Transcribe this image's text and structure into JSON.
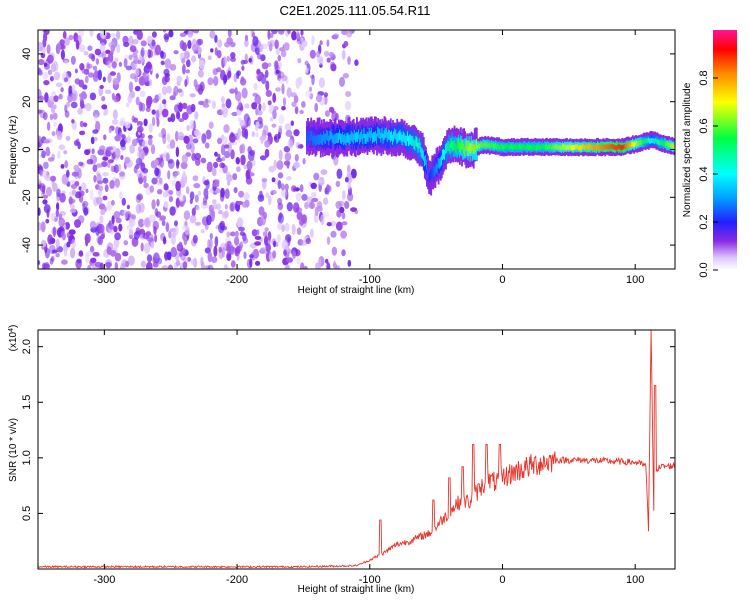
{
  "figure": {
    "title": "C2E1.2025.111.05.54.R11"
  },
  "chart_data": [
    {
      "type": "heatmap",
      "xlabel": "Height of straight line (km)",
      "ylabel": "Frequency (Hz)",
      "xlim": [
        -350,
        130
      ],
      "ylim": [
        -50,
        50
      ],
      "xticks": [
        -300,
        -200,
        -100,
        0,
        100
      ],
      "yticks": [
        -40,
        -20,
        0,
        20,
        40
      ],
      "colorbar": {
        "label": "Normalized spectral amplitude",
        "range": [
          0,
          1
        ],
        "ticks": [
          0.0,
          0.2,
          0.4,
          0.6,
          0.8
        ],
        "colors": [
          "#ffffff",
          "#8a2be2",
          "#0000ff",
          "#00ffff",
          "#00ff00",
          "#ffff00",
          "#ff8800",
          "#ff0000",
          "#ff1493"
        ]
      },
      "noise_region_x": [
        -350,
        -110
      ],
      "signal_band": [
        {
          "x": -148,
          "freq": 5,
          "amplitude": 0.25
        },
        {
          "x": -120,
          "freq": 5,
          "amplitude": 0.35
        },
        {
          "x": -95,
          "freq": 6,
          "amplitude": 0.35
        },
        {
          "x": -75,
          "freq": 5,
          "amplitude": 0.4
        },
        {
          "x": -62,
          "freq": 1,
          "amplitude": 0.45
        },
        {
          "x": -55,
          "freq": -12,
          "amplitude": 0.2
        },
        {
          "x": -40,
          "freq": 2,
          "amplitude": 0.5
        },
        {
          "x": -25,
          "freq": 0,
          "amplitude": 0.65
        },
        {
          "x": -15,
          "freq": 2,
          "amplitude": 0.6
        },
        {
          "x": 0,
          "freq": 1,
          "amplitude": 0.55
        },
        {
          "x": 30,
          "freq": 1,
          "amplitude": 0.55
        },
        {
          "x": 60,
          "freq": 1,
          "amplitude": 0.75
        },
        {
          "x": 90,
          "freq": 1,
          "amplitude": 0.9
        },
        {
          "x": 112,
          "freq": 4,
          "amplitude": 0.4
        },
        {
          "x": 130,
          "freq": 1,
          "amplitude": 0.7
        }
      ]
    },
    {
      "type": "line",
      "xlabel": "Height of straight line (km)",
      "ylabel": "SNR (10 * v/v)",
      "y_multiplier_label": "(x10",
      "y_multiplier_exponent": "4",
      "xlim": [
        -350,
        130
      ],
      "ylim": [
        0,
        2.15
      ],
      "xticks": [
        -300,
        -200,
        -100,
        0,
        100
      ],
      "yticks": [
        0.5,
        1.0,
        1.5,
        2.0
      ],
      "ytick_labels": [
        "0.5",
        "1.0",
        "1.5",
        "2.0"
      ],
      "color": "#e8342a",
      "series": [
        {
          "x": [
            -350,
            -300,
            -250,
            -200,
            -150,
            -110,
            -100,
            -90,
            -80,
            -70,
            -60,
            -55,
            -50,
            -45,
            -40,
            -35,
            -30,
            -25,
            -20,
            -15,
            -10,
            -5,
            0,
            10,
            20,
            30,
            40,
            60,
            80,
            100,
            108,
            110,
            112,
            114,
            116,
            120,
            130
          ],
          "y": [
            0.02,
            0.02,
            0.02,
            0.02,
            0.02,
            0.03,
            0.08,
            0.14,
            0.22,
            0.25,
            0.3,
            0.32,
            0.38,
            0.45,
            0.5,
            0.58,
            0.62,
            0.6,
            0.68,
            0.75,
            0.8,
            0.78,
            0.82,
            0.88,
            0.92,
            0.96,
            0.98,
            0.98,
            0.97,
            0.96,
            0.93,
            0.35,
            2.15,
            0.5,
            0.9,
            0.92,
            0.93
          ]
        }
      ],
      "spikes": [
        {
          "x": -92,
          "y": 0.44
        },
        {
          "x": -52,
          "y": 0.62
        },
        {
          "x": -40,
          "y": 0.82
        },
        {
          "x": -30,
          "y": 0.92
        },
        {
          "x": -22,
          "y": 1.12
        },
        {
          "x": -12,
          "y": 1.12
        },
        {
          "x": -2,
          "y": 1.12
        },
        {
          "x": 115,
          "y": 1.65
        }
      ]
    }
  ]
}
